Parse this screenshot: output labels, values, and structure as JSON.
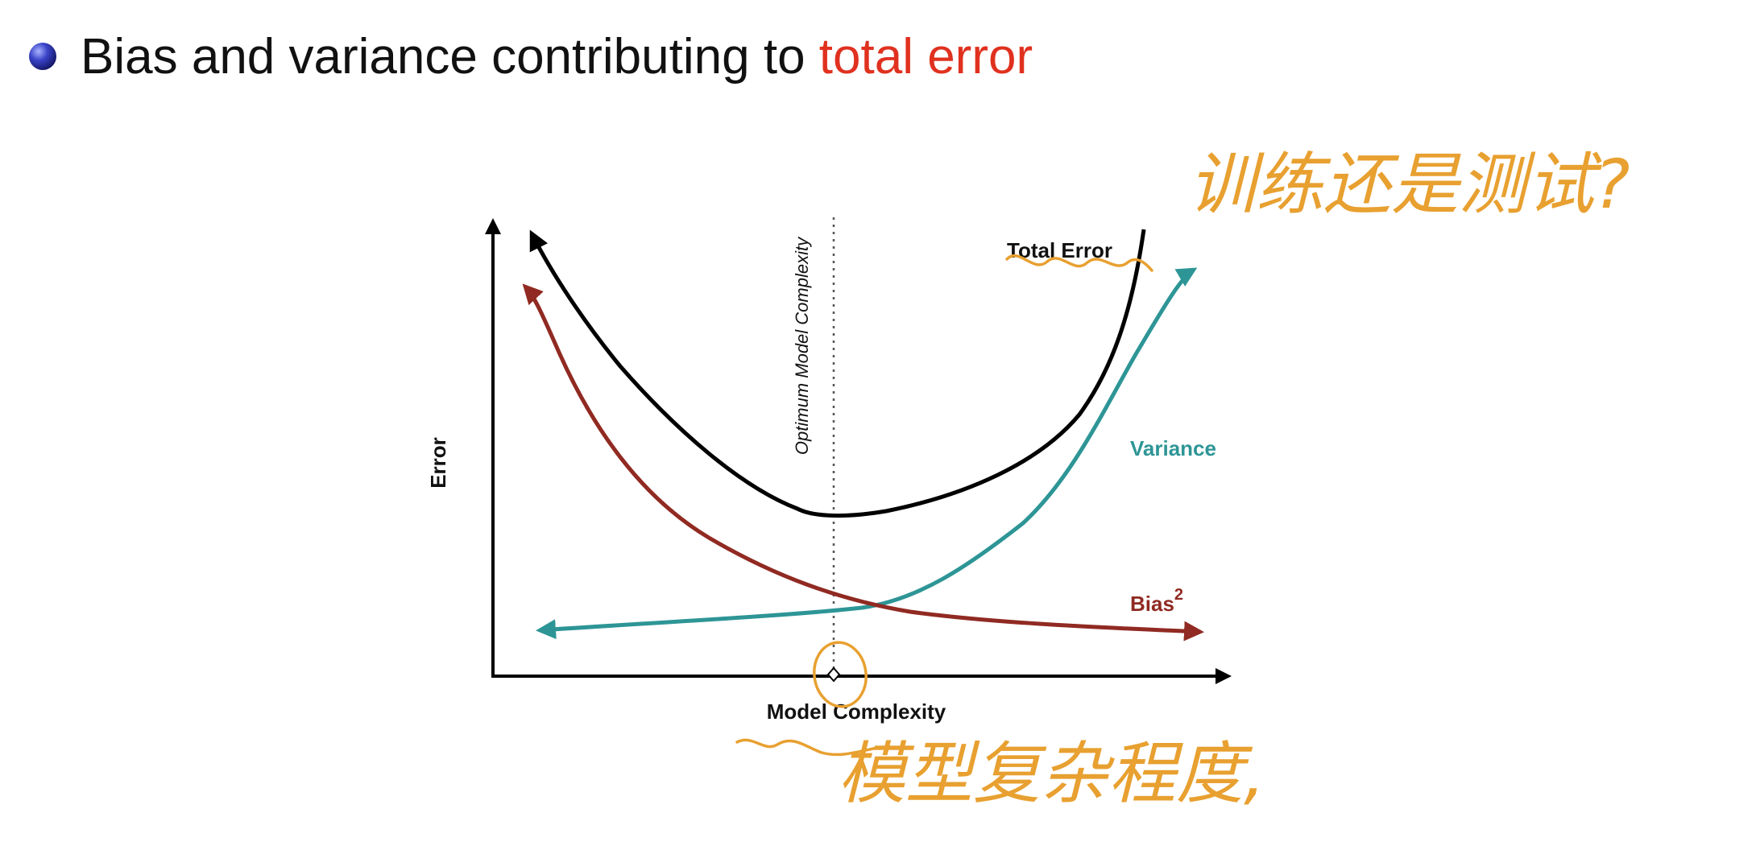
{
  "slide": {
    "bullet_text": "Bias and variance contributing to",
    "bullet_highlight": "total error",
    "highlight_color": "#e0311f"
  },
  "annotations": {
    "top_right": "训练还是测试?",
    "bottom": "模型复杂程度,",
    "color": "#e8a030"
  },
  "chart_data": {
    "type": "line",
    "title": "",
    "xlabel": "Model Complexity",
    "ylabel": "Error",
    "optimum_label": "Optimum Model Complexity",
    "series": [
      {
        "name": "Total Error",
        "color": "#000000"
      },
      {
        "name": "Variance",
        "color": "#2e9596"
      },
      {
        "name": "Bias",
        "superscript": "2",
        "color": "#902a22"
      }
    ]
  }
}
